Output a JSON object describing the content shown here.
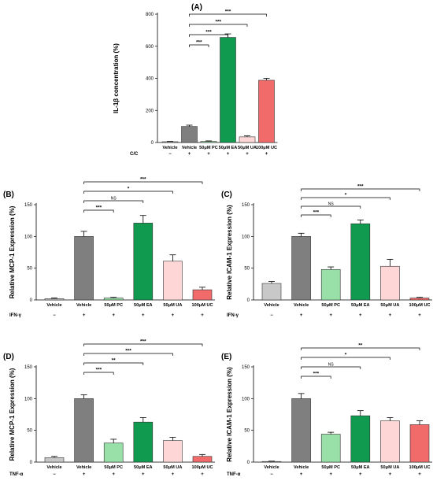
{
  "colors": {
    "Vehicle_ctrl": "#c8c8c8",
    "Vehicle": "#7f7f7f",
    "PC": "#98e0a8",
    "EA": "#0f9a4f",
    "UA": "#ffd6d6",
    "UC": "#f26b6b"
  },
  "chart_data": [
    {
      "type": "bar",
      "panel": "(A)",
      "ylabel": "IL-1β concentration (%)",
      "ylim": [
        0,
        800
      ],
      "yticks": [
        0,
        200,
        400,
        600,
        800
      ],
      "categories": [
        "Vehicle",
        "Vehicle",
        "50μM PC",
        "50μM EA",
        "50μM UA",
        "100μM UC"
      ],
      "color_keys": [
        "Vehicle_ctrl",
        "Vehicle",
        "PC",
        "EA",
        "UA",
        "UC"
      ],
      "values": [
        5,
        100,
        7,
        655,
        35,
        388
      ],
      "errors": [
        2,
        8,
        3,
        22,
        6,
        12
      ],
      "treatment_label": "C/C",
      "treatment_signs": [
        "−",
        "+",
        "+",
        "+",
        "+",
        "+"
      ],
      "significance": [
        {
          "from": 1,
          "to": 2,
          "label": "***"
        },
        {
          "from": 1,
          "to": 3,
          "label": "***"
        },
        {
          "from": 1,
          "to": 4,
          "label": "***"
        },
        {
          "from": 1,
          "to": 5,
          "label": "***"
        }
      ]
    },
    {
      "type": "bar",
      "panel": "(B)",
      "ylabel": "Relative MCP-1 Expression (%)",
      "ylim": [
        0,
        150
      ],
      "yticks": [
        0,
        50,
        100,
        150
      ],
      "categories": [
        "Vehicle",
        "Vehicle",
        "50μM PC",
        "50μM EA",
        "50μM UA",
        "100μM UC"
      ],
      "color_keys": [
        "Vehicle_ctrl",
        "Vehicle",
        "PC",
        "EA",
        "UA",
        "UC"
      ],
      "values": [
        2,
        100,
        3,
        121,
        61,
        16
      ],
      "errors": [
        1,
        8,
        1,
        12,
        10,
        4
      ],
      "treatment_label": "IFN-γ",
      "treatment_signs": [
        "−",
        "+",
        "+",
        "+",
        "+",
        "+"
      ],
      "significance": [
        {
          "from": 1,
          "to": 2,
          "label": "***"
        },
        {
          "from": 1,
          "to": 3,
          "label": "NS"
        },
        {
          "from": 1,
          "to": 4,
          "label": "*"
        },
        {
          "from": 1,
          "to": 5,
          "label": "***"
        }
      ]
    },
    {
      "type": "bar",
      "panel": "(C)",
      "ylabel": "Relative ICAM-1 Expression (%)",
      "ylim": [
        0,
        150
      ],
      "yticks": [
        0,
        50,
        100,
        150
      ],
      "categories": [
        "Vehicle",
        "Vehicle",
        "50μM PC",
        "50μM EA",
        "50μM UA",
        "100μM UC"
      ],
      "color_keys": [
        "Vehicle_ctrl",
        "Vehicle",
        "PC",
        "EA",
        "UA",
        "UC"
      ],
      "values": [
        26,
        100,
        48,
        120,
        53,
        3
      ],
      "errors": [
        3,
        5,
        4,
        6,
        11,
        1
      ],
      "treatment_label": "IFN-γ",
      "treatment_signs": [
        "−",
        "+",
        "+",
        "+",
        "+",
        "+"
      ],
      "significance": [
        {
          "from": 1,
          "to": 2,
          "label": "***"
        },
        {
          "from": 1,
          "to": 3,
          "label": "NS"
        },
        {
          "from": 1,
          "to": 4,
          "label": "*"
        },
        {
          "from": 1,
          "to": 5,
          "label": "***"
        }
      ]
    },
    {
      "type": "bar",
      "panel": "(D)",
      "ylabel": "Relative MCP-1 Expression (%)",
      "ylim": [
        0,
        150
      ],
      "yticks": [
        0,
        50,
        100,
        150
      ],
      "categories": [
        "Vehicle",
        "Vehicle",
        "50μM PC",
        "50μM EA",
        "50μM UA",
        "100μM UC"
      ],
      "color_keys": [
        "Vehicle_ctrl",
        "Vehicle",
        "PC",
        "EA",
        "UA",
        "UC"
      ],
      "values": [
        7,
        100,
        30,
        63,
        34,
        9
      ],
      "errors": [
        2,
        6,
        6,
        7,
        5,
        3
      ],
      "treatment_label": "TNF-α",
      "treatment_signs": [
        "−",
        "+",
        "+",
        "+",
        "+",
        "+"
      ],
      "significance": [
        {
          "from": 1,
          "to": 2,
          "label": "***"
        },
        {
          "from": 1,
          "to": 3,
          "label": "**"
        },
        {
          "from": 1,
          "to": 4,
          "label": "***"
        },
        {
          "from": 1,
          "to": 5,
          "label": "***"
        }
      ]
    },
    {
      "type": "bar",
      "panel": "(E)",
      "ylabel": "Relative ICAM-1 Expression (%)",
      "ylim": [
        0,
        150
      ],
      "yticks": [
        0,
        50,
        100,
        150
      ],
      "categories": [
        "Vehicle",
        "Vehicle",
        "50μM PC",
        "50μM EA",
        "50μM UA",
        "100μM UC"
      ],
      "color_keys": [
        "Vehicle_ctrl",
        "Vehicle",
        "PC",
        "EA",
        "UA",
        "UC"
      ],
      "values": [
        1,
        100,
        44,
        73,
        65,
        59
      ],
      "errors": [
        0.5,
        8,
        3,
        8,
        5,
        6
      ],
      "treatment_label": "TNF-α",
      "treatment_signs": [
        "−",
        "+",
        "+",
        "+",
        "+",
        "+"
      ],
      "significance": [
        {
          "from": 1,
          "to": 2,
          "label": "***"
        },
        {
          "from": 1,
          "to": 3,
          "label": "NS"
        },
        {
          "from": 1,
          "to": 4,
          "label": "*"
        },
        {
          "from": 1,
          "to": 5,
          "label": "**"
        }
      ]
    }
  ]
}
